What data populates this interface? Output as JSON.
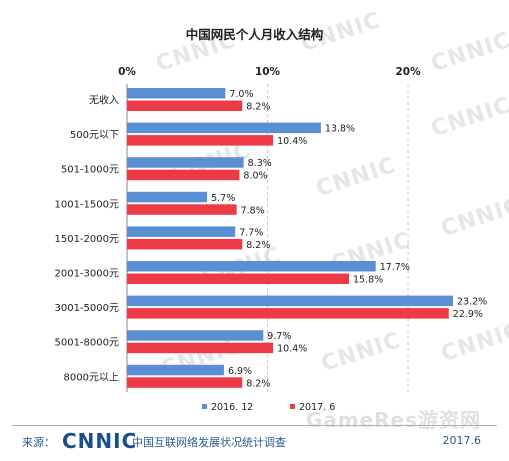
{
  "title": "中国网民个人月收入结构",
  "watermark_text": "CNNIC",
  "corner_watermark": "GameRes游资网",
  "footer": {
    "source_label": "来源：",
    "logo": "CNNIC",
    "subtitle": "中国互联网络发展状况统计调查",
    "date": "2017.6"
  },
  "colors": {
    "series_2016": "#5b8fd4",
    "series_2017": "#ee3a46"
  },
  "chart_data": {
    "type": "bar",
    "orientation": "horizontal",
    "title": "中国网民个人月收入结构",
    "categories": [
      "无收入",
      "500元以下",
      "501-1000元",
      "1001-1500元",
      "1501-2000元",
      "2001-3000元",
      "3001-5000元",
      "5001-8000元",
      "8000元以上"
    ],
    "series": [
      {
        "name": "2016. 12",
        "color": "#5b8fd4",
        "values": [
          7.0,
          13.8,
          8.3,
          5.7,
          7.7,
          17.7,
          23.2,
          9.7,
          6.9
        ]
      },
      {
        "name": "2017. 6",
        "color": "#ee3a46",
        "values": [
          8.2,
          10.4,
          8.0,
          7.8,
          8.2,
          15.8,
          22.9,
          10.4,
          8.2
        ]
      }
    ],
    "value_labels": {
      "2016. 12": [
        "7.0%",
        "13.8%",
        "8.3%",
        "5.7%",
        "7.7%",
        "17.7%",
        "23.2%",
        "9.7%",
        "6.9%"
      ],
      "2017. 6": [
        "8.2%",
        "10.4%",
        "8.0%",
        "7.8%",
        "8.2%",
        "15.8%",
        "22.9%",
        "10.4%",
        "8.2%"
      ]
    },
    "x_ticks": [
      "0%",
      "10%",
      "20%"
    ],
    "x_tick_values": [
      0,
      10,
      20
    ],
    "xlim": [
      0,
      23.2
    ],
    "grid": true,
    "legend_position": "bottom"
  }
}
